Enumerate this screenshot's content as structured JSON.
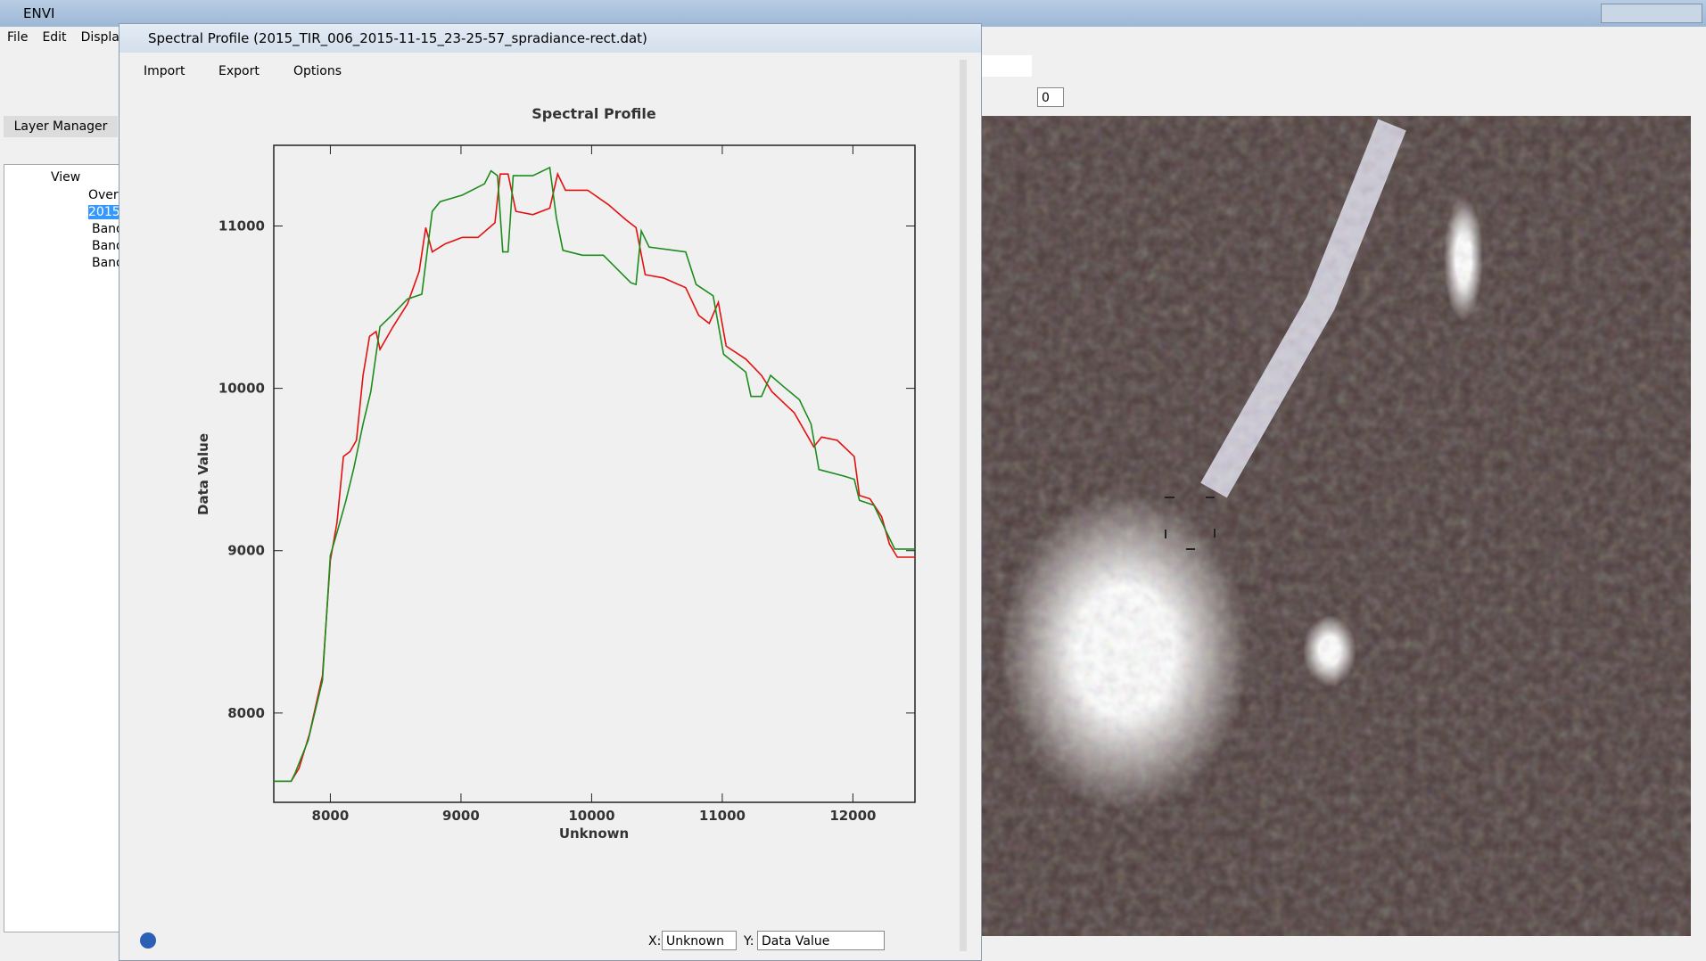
{
  "app_title": "ENVI",
  "menu": [
    "File",
    "Edit",
    "Display"
  ],
  "layer_manager": {
    "title": "Layer Manager",
    "tree": [
      "View",
      "Overv",
      "2015",
      "Band",
      "Band",
      "Band"
    ]
  },
  "zoom_value": "0",
  "window": {
    "title": "Spectral Profile (2015_TIR_006_2015-11-15_23-25-57_spradiance-rect.dat)",
    "toolbar": [
      "Import",
      "Export",
      "Options"
    ],
    "x_selector_label": "X:",
    "x_selector": "Unknown",
    "y_selector_label": "Y:",
    "y_selector": "Data Value"
  },
  "chart_data": {
    "type": "line",
    "title": "Spectral Profile",
    "x_label": "Unknown",
    "y_label": "Data Value",
    "xlim": [
      7567,
      12475
    ],
    "ylim": [
      7450,
      11497
    ],
    "xticks": [
      8000,
      9000,
      10000,
      11000,
      12000
    ],
    "yticks": [
      8000,
      9000,
      10000,
      11000
    ],
    "series": [
      {
        "color": "#e41010",
        "x": [
          7567,
          7700,
          7760,
          7840,
          7940,
          8000,
          8050,
          8100,
          8150,
          8200,
          8250,
          8300,
          8350,
          8380,
          8480,
          8590,
          8680,
          8730,
          8780,
          8880,
          9010,
          9130,
          9260,
          9300,
          9360,
          9420,
          9550,
          9680,
          9740,
          9800,
          9970,
          10130,
          10260,
          10340,
          10410,
          10550,
          10720,
          10820,
          10900,
          10970,
          11030,
          11180,
          11300,
          11380,
          11550,
          11700,
          11760,
          11880,
          12010,
          12050,
          12130,
          12220,
          12280,
          12340,
          12475
        ],
        "values": [
          7580,
          7580,
          7660,
          7870,
          8230,
          8940,
          9170,
          9580,
          9610,
          9680,
          10080,
          10320,
          10350,
          10240,
          10380,
          10520,
          10720,
          10990,
          10840,
          10890,
          10930,
          10930,
          11020,
          11320,
          11320,
          11090,
          11070,
          11110,
          11320,
          11220,
          11220,
          11130,
          11040,
          10990,
          10700,
          10680,
          10620,
          10450,
          10400,
          10530,
          10260,
          10180,
          10080,
          9980,
          9850,
          9640,
          9700,
          9680,
          9580,
          9340,
          9320,
          9210,
          9040,
          8960,
          8960
        ]
      },
      {
        "color": "#1c8c1c",
        "x": [
          7567,
          7700,
          7730,
          7830,
          7940,
          8000,
          8050,
          8120,
          8180,
          8250,
          8310,
          8380,
          8470,
          8590,
          8700,
          8780,
          8840,
          9010,
          9180,
          9230,
          9280,
          9320,
          9360,
          9400,
          9550,
          9680,
          9730,
          9780,
          9930,
          10090,
          10300,
          10340,
          10380,
          10440,
          10720,
          10800,
          10930,
          11010,
          11180,
          11220,
          11300,
          11370,
          11470,
          11590,
          11680,
          11740,
          11930,
          12010,
          12050,
          12160,
          12260,
          12320,
          12475
        ],
        "values": [
          7580,
          7580,
          7630,
          7830,
          8200,
          8970,
          9110,
          9310,
          9510,
          9780,
          9980,
          10380,
          10450,
          10550,
          10580,
          11090,
          11150,
          11190,
          11260,
          11340,
          11310,
          10840,
          10840,
          11310,
          11310,
          11360,
          11050,
          10850,
          10820,
          10820,
          10650,
          10640,
          10970,
          10870,
          10840,
          10640,
          10570,
          10210,
          10100,
          9950,
          9950,
          10080,
          10010,
          9930,
          9780,
          9500,
          9460,
          9440,
          9310,
          9280,
          9110,
          9010,
          9010
        ]
      }
    ]
  }
}
